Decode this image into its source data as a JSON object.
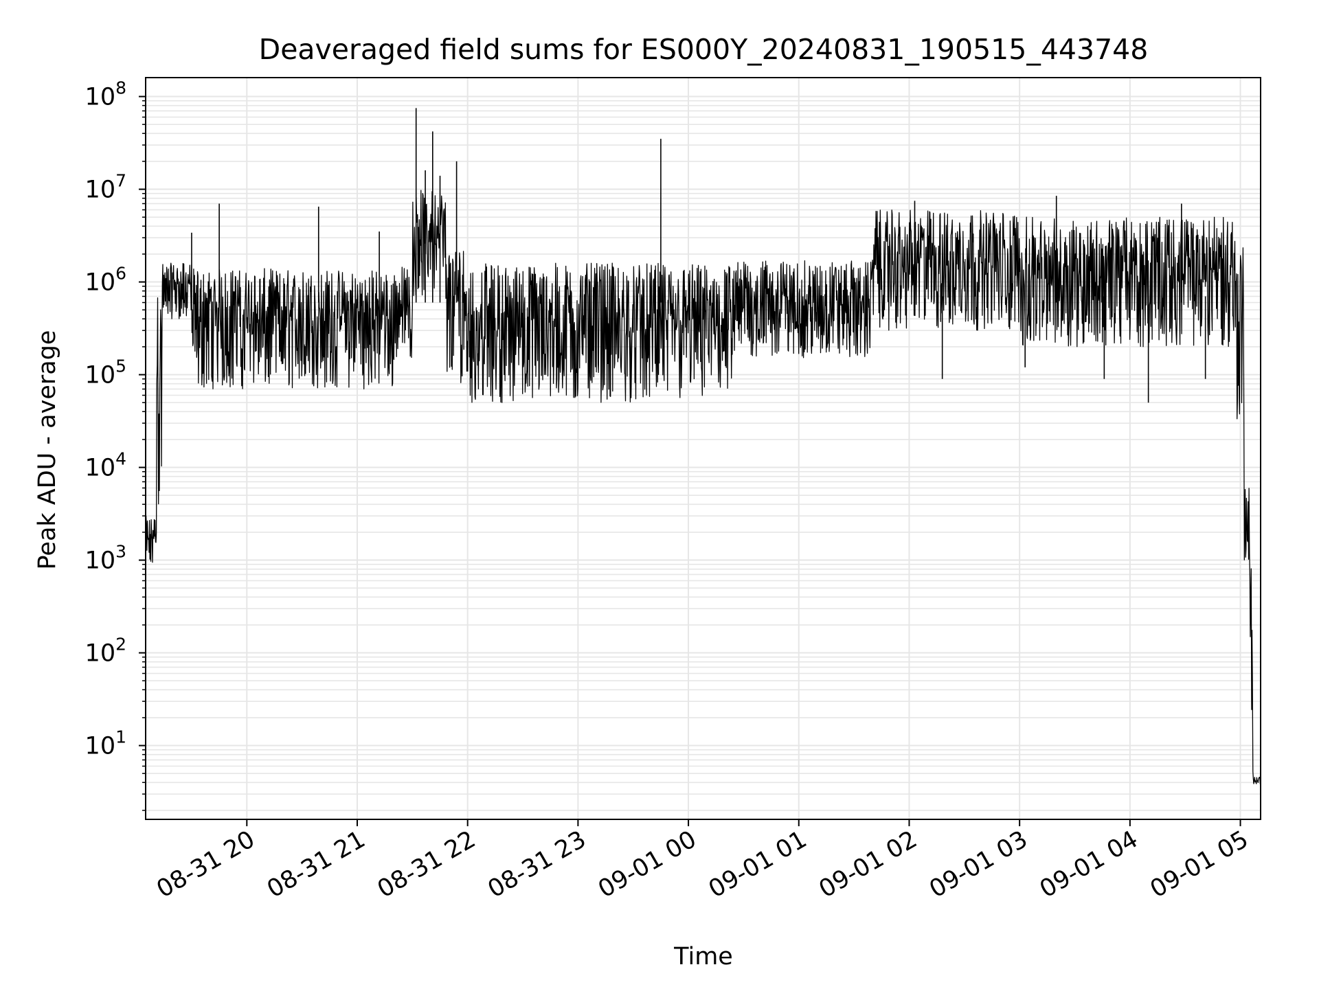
{
  "chart_data": {
    "type": "line",
    "title": "Deaveraged field sums for ES000Y_20240831_190515_443748",
    "xlabel": "Time",
    "ylabel": "Peak ADU - average",
    "yscale": "log",
    "ylim": [
      1.6,
      160000000.0
    ],
    "xlim": [
      "2024-08-31 19:05",
      "2024-09-01 05:11"
    ],
    "grid": true,
    "line_color": "#000000",
    "grid_color": "#e6e6e6",
    "x_ticks": [
      {
        "t": "2024-08-31 20:00",
        "label": "08-31 20"
      },
      {
        "t": "2024-08-31 21:00",
        "label": "08-31 21"
      },
      {
        "t": "2024-08-31 22:00",
        "label": "08-31 22"
      },
      {
        "t": "2024-08-31 23:00",
        "label": "08-31 23"
      },
      {
        "t": "2024-09-01 00:00",
        "label": "09-01 00"
      },
      {
        "t": "2024-09-01 01:00",
        "label": "09-01 01"
      },
      {
        "t": "2024-09-01 02:00",
        "label": "09-01 02"
      },
      {
        "t": "2024-09-01 03:00",
        "label": "09-01 03"
      },
      {
        "t": "2024-09-01 04:00",
        "label": "09-01 04"
      },
      {
        "t": "2024-09-01 05:00",
        "label": "09-01 05"
      }
    ],
    "y_ticks": [
      {
        "value": 10,
        "base": "10",
        "exp": "1"
      },
      {
        "value": 100,
        "base": "10",
        "exp": "2"
      },
      {
        "value": 1000,
        "base": "10",
        "exp": "3"
      },
      {
        "value": 10000,
        "base": "10",
        "exp": "4"
      },
      {
        "value": 100000,
        "base": "10",
        "exp": "5"
      },
      {
        "value": 1000000,
        "base": "10",
        "exp": "6"
      },
      {
        "value": 10000000,
        "base": "10",
        "exp": "7"
      },
      {
        "value": 100000000,
        "base": "10",
        "exp": "8"
      }
    ],
    "series_segments": [
      {
        "start": "2024-08-31 19:05",
        "end": "2024-08-31 19:11",
        "low": 800,
        "high": 3000
      },
      {
        "start": "2024-08-31 19:11",
        "end": "2024-08-31 19:14",
        "low": 3000,
        "high": 800000
      },
      {
        "start": "2024-08-31 19:14",
        "end": "2024-08-31 19:30",
        "low": 400000,
        "high": 1600000
      },
      {
        "start": "2024-08-31 19:30",
        "end": "2024-08-31 21:20",
        "low": 70000,
        "high": 1400000
      },
      {
        "start": "2024-08-31 21:20",
        "end": "2024-08-31 21:30",
        "low": 150000,
        "high": 1500000
      },
      {
        "start": "2024-08-31 21:30",
        "end": "2024-08-31 21:48",
        "low": 700000,
        "high": 10000000
      },
      {
        "start": "2024-08-31 21:48",
        "end": "2024-08-31 22:00",
        "low": 80000,
        "high": 2500000
      },
      {
        "start": "2024-08-31 22:00",
        "end": "2024-09-01 00:25",
        "low": 50000,
        "high": 1600000
      },
      {
        "start": "2024-09-01 00:25",
        "end": "2024-09-01 01:40",
        "low": 150000,
        "high": 1700000
      },
      {
        "start": "2024-09-01 01:40",
        "end": "2024-09-01 03:00",
        "low": 300000,
        "high": 6000000
      },
      {
        "start": "2024-09-01 03:00",
        "end": "2024-09-01 04:58",
        "low": 200000,
        "high": 5000000
      },
      {
        "start": "2024-09-01 04:58",
        "end": "2024-09-01 05:02",
        "low": 20000,
        "high": 3000000
      },
      {
        "start": "2024-09-01 05:02",
        "end": "2024-09-01 05:05",
        "low": 900,
        "high": 6000
      },
      {
        "start": "2024-09-01 05:05",
        "end": "2024-09-01 05:07",
        "low": 4,
        "high": 900
      },
      {
        "start": "2024-09-01 05:07",
        "end": "2024-09-01 05:11",
        "low": 3.8,
        "high": 4.6
      }
    ],
    "spikes": [
      {
        "t": "2024-08-31 19:30",
        "value": 3400000
      },
      {
        "t": "2024-08-31 19:45",
        "value": 7000000
      },
      {
        "t": "2024-08-31 20:39",
        "value": 6500000
      },
      {
        "t": "2024-08-31 21:12",
        "value": 3500000
      },
      {
        "t": "2024-08-31 21:32",
        "value": 75000000
      },
      {
        "t": "2024-08-31 21:37",
        "value": 16000000
      },
      {
        "t": "2024-08-31 21:41",
        "value": 42000000
      },
      {
        "t": "2024-08-31 21:45",
        "value": 14000000
      },
      {
        "t": "2024-08-31 21:54",
        "value": 20000000
      },
      {
        "t": "2024-08-31 23:45",
        "value": 35000000
      },
      {
        "t": "2024-09-01 02:03",
        "value": 7500000
      },
      {
        "t": "2024-09-01 03:20",
        "value": 8500000
      },
      {
        "t": "2024-09-01 04:28",
        "value": 7000000
      }
    ],
    "dips": [
      {
        "t": "2024-09-01 02:18",
        "value": 90000
      },
      {
        "t": "2024-09-01 03:03",
        "value": 120000
      },
      {
        "t": "2024-09-01 03:46",
        "value": 90000
      },
      {
        "t": "2024-09-01 04:10",
        "value": 50000
      },
      {
        "t": "2024-09-01 04:41",
        "value": 90000
      }
    ]
  }
}
